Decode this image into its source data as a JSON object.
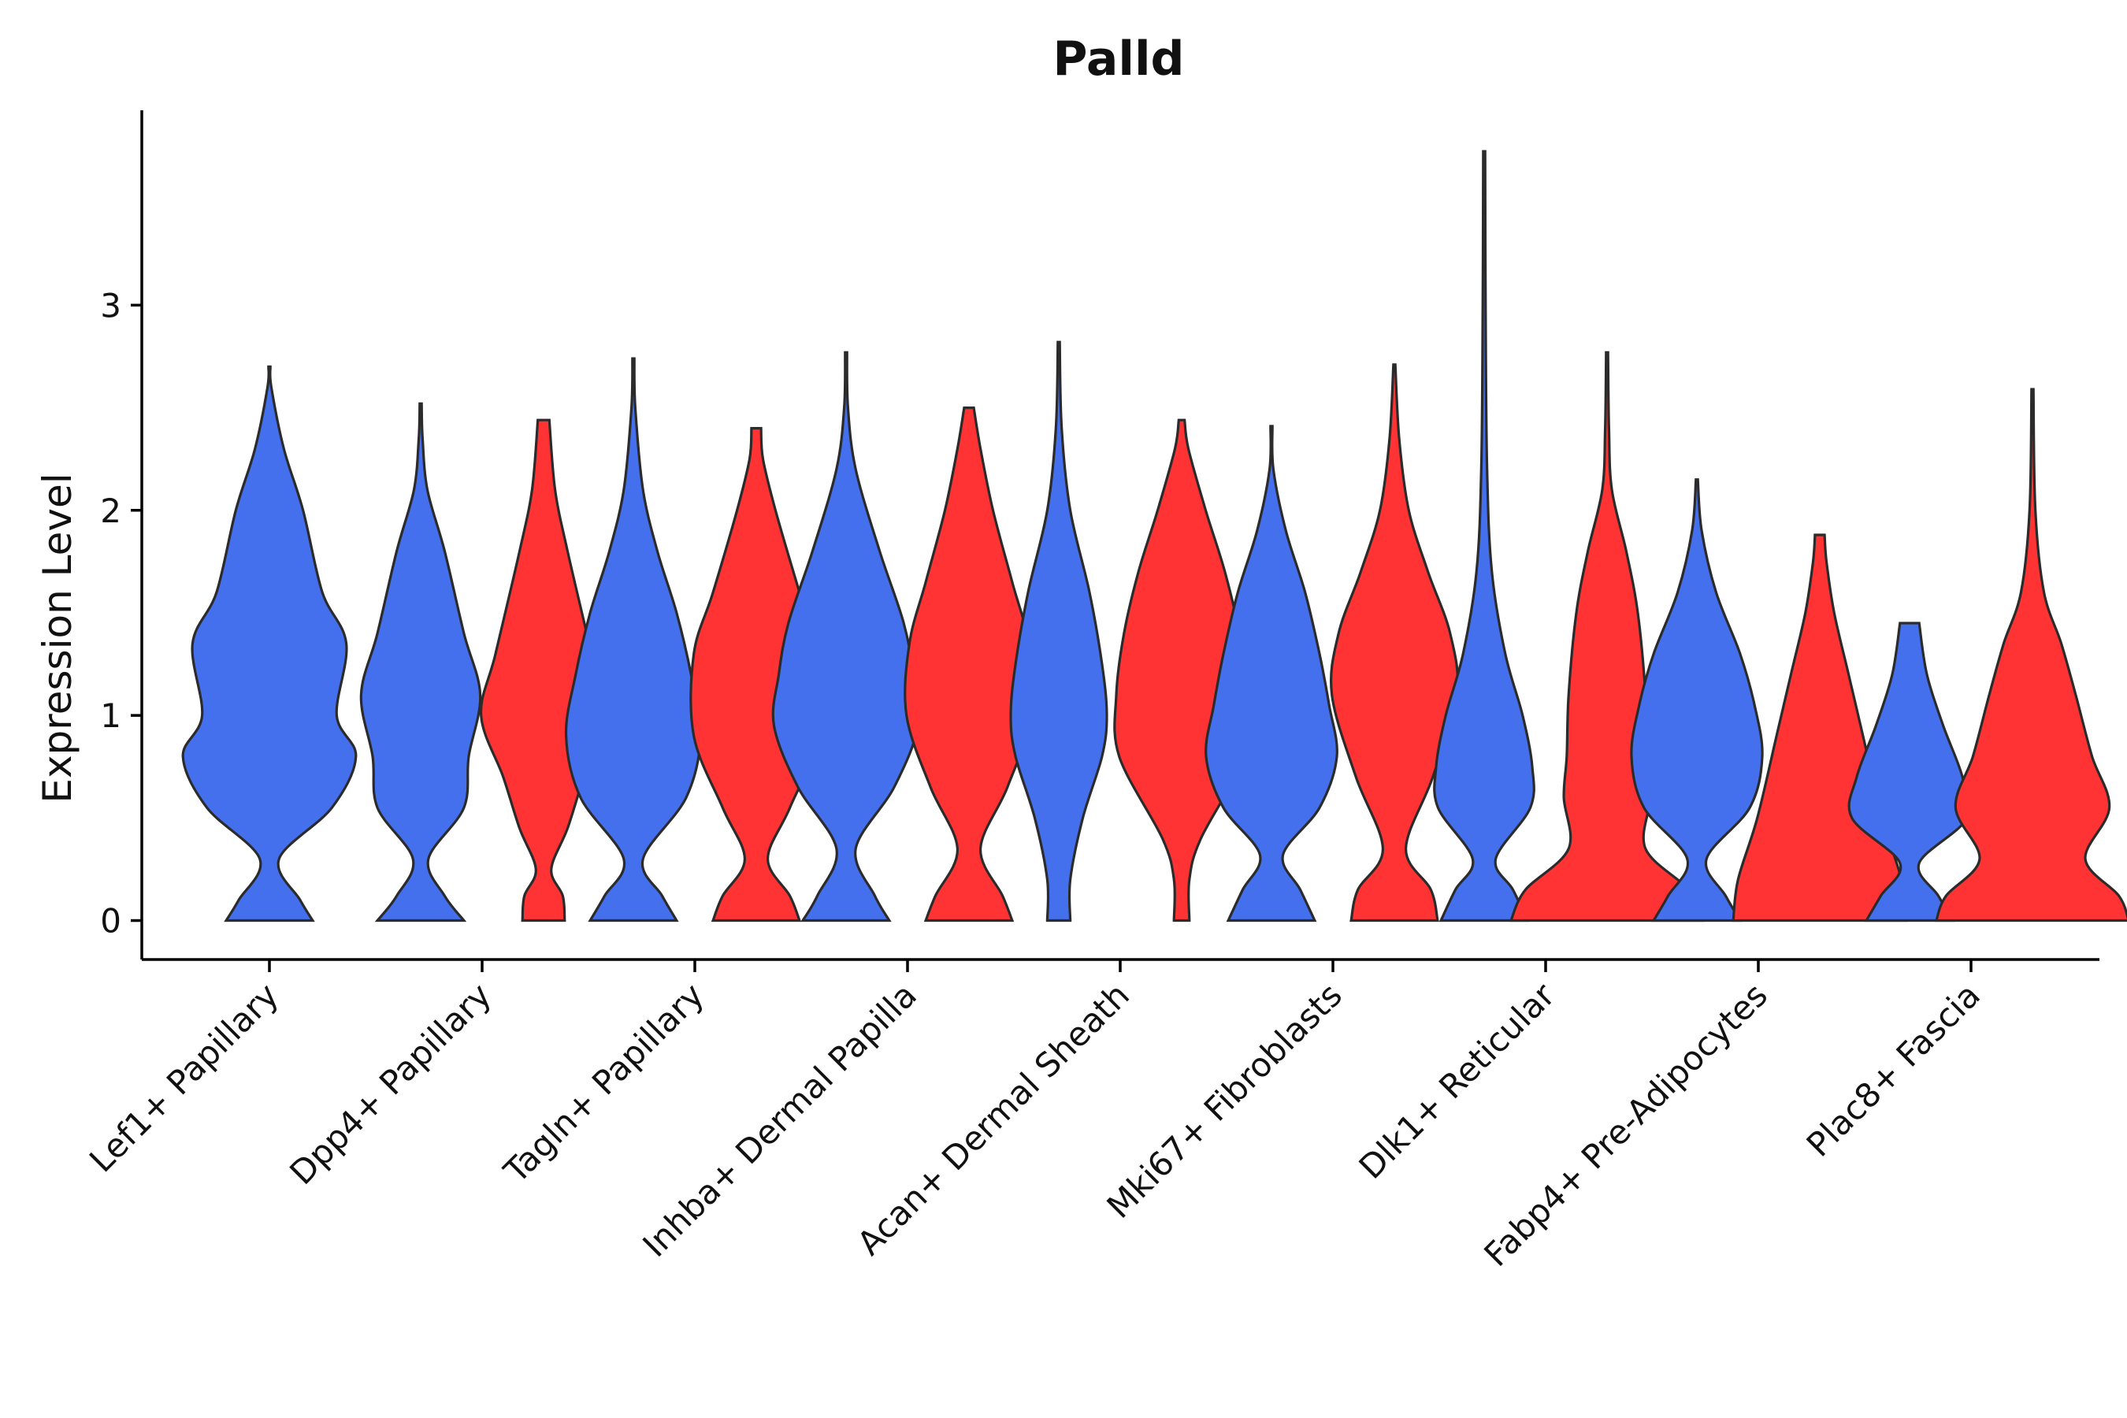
{
  "chart_data": {
    "type": "violin",
    "title": "Palld",
    "xlabel": "",
    "ylabel": "Expression Level",
    "ylim": [
      -0.19,
      3.95
    ],
    "yticks": [
      0,
      1,
      2,
      3
    ],
    "colors": {
      "blue": "#4470EE",
      "red": "#FF3333"
    },
    "categories": [
      "Lef1+ Papillary",
      "Dpp4+ Papillary",
      "Tagln+ Papillary",
      "Inhba+ Dermal Papilla",
      "Acan+ Dermal Sheath",
      "Mki67+ Fibroblasts",
      "Dlk1+ Reticular",
      "Fabp4+ Pre-Adipocytes",
      "Plac8+ Fascia"
    ],
    "series": [
      {
        "name": "blue",
        "color": "#4470EE",
        "violins": [
          {
            "category": "Lef1+ Papillary",
            "max": 2.7,
            "profile": [
              [
                0,
                0.45
              ],
              [
                0.1,
                0.32
              ],
              [
                0.3,
                0.1
              ],
              [
                0.55,
                0.65
              ],
              [
                0.8,
                0.9
              ],
              [
                1.0,
                0.7
              ],
              [
                1.35,
                0.8
              ],
              [
                1.6,
                0.55
              ],
              [
                2.0,
                0.35
              ],
              [
                2.3,
                0.15
              ],
              [
                2.6,
                0.02
              ],
              [
                2.7,
                0.01
              ]
            ]
          },
          {
            "category": "Dpp4+ Papillary",
            "max": 2.52,
            "profile": [
              [
                0,
                0.45
              ],
              [
                0.12,
                0.25
              ],
              [
                0.3,
                0.08
              ],
              [
                0.55,
                0.45
              ],
              [
                0.8,
                0.5
              ],
              [
                1.1,
                0.62
              ],
              [
                1.4,
                0.45
              ],
              [
                1.8,
                0.25
              ],
              [
                2.1,
                0.07
              ],
              [
                2.35,
                0.02
              ],
              [
                2.52,
                0.01
              ]
            ]
          },
          {
            "category": "Tagln+ Papillary",
            "max": 2.74,
            "profile": [
              [
                0,
                0.45
              ],
              [
                0.12,
                0.3
              ],
              [
                0.3,
                0.1
              ],
              [
                0.6,
                0.55
              ],
              [
                0.9,
                0.7
              ],
              [
                1.2,
                0.6
              ],
              [
                1.5,
                0.45
              ],
              [
                1.8,
                0.25
              ],
              [
                2.1,
                0.1
              ],
              [
                2.5,
                0.02
              ],
              [
                2.74,
                0.01
              ]
            ]
          },
          {
            "category": "Inhba+ Dermal Papilla",
            "max": 2.77,
            "profile": [
              [
                0,
                0.45
              ],
              [
                0.12,
                0.3
              ],
              [
                0.35,
                0.1
              ],
              [
                0.65,
                0.5
              ],
              [
                0.95,
                0.75
              ],
              [
                1.2,
                0.7
              ],
              [
                1.45,
                0.6
              ],
              [
                1.8,
                0.35
              ],
              [
                2.2,
                0.1
              ],
              [
                2.5,
                0.02
              ],
              [
                2.77,
                0.01
              ]
            ]
          },
          {
            "category": "Acan+ Dermal Sheath",
            "max": 2.82,
            "profile": [
              [
                0,
                0.12
              ],
              [
                0.2,
                0.12
              ],
              [
                0.5,
                0.25
              ],
              [
                0.8,
                0.45
              ],
              [
                1.0,
                0.5
              ],
              [
                1.25,
                0.45
              ],
              [
                1.6,
                0.32
              ],
              [
                2.0,
                0.12
              ],
              [
                2.4,
                0.03
              ],
              [
                2.82,
                0.01
              ]
            ]
          },
          {
            "category": "Mki67+ Fibroblasts",
            "max": 2.41,
            "profile": [
              [
                0,
                0.45
              ],
              [
                0.15,
                0.3
              ],
              [
                0.32,
                0.12
              ],
              [
                0.55,
                0.5
              ],
              [
                0.8,
                0.68
              ],
              [
                1.05,
                0.6
              ],
              [
                1.3,
                0.5
              ],
              [
                1.6,
                0.35
              ],
              [
                1.9,
                0.15
              ],
              [
                2.2,
                0.02
              ],
              [
                2.41,
                0.01
              ]
            ]
          },
          {
            "category": "Dlk1+ Reticular",
            "max": 3.75,
            "profile": [
              [
                0,
                0.45
              ],
              [
                0.15,
                0.3
              ],
              [
                0.3,
                0.12
              ],
              [
                0.55,
                0.48
              ],
              [
                0.75,
                0.5
              ],
              [
                1.0,
                0.4
              ],
              [
                1.3,
                0.22
              ],
              [
                1.7,
                0.08
              ],
              [
                2.2,
                0.03
              ],
              [
                3.0,
                0.015
              ],
              [
                3.75,
                0.01
              ]
            ]
          },
          {
            "category": "Fabp4+ Pre-Adipocytes",
            "max": 2.15,
            "profile": [
              [
                0,
                0.45
              ],
              [
                0.12,
                0.3
              ],
              [
                0.3,
                0.1
              ],
              [
                0.55,
                0.55
              ],
              [
                0.8,
                0.68
              ],
              [
                1.05,
                0.6
              ],
              [
                1.3,
                0.45
              ],
              [
                1.6,
                0.2
              ],
              [
                1.9,
                0.05
              ],
              [
                2.15,
                0.01
              ]
            ]
          },
          {
            "category": "Plac8+ Fascia",
            "max": 1.45,
            "profile": [
              [
                0,
                0.45
              ],
              [
                0.12,
                0.3
              ],
              [
                0.28,
                0.1
              ],
              [
                0.5,
                0.6
              ],
              [
                0.7,
                0.55
              ],
              [
                0.95,
                0.35
              ],
              [
                1.2,
                0.18
              ],
              [
                1.45,
                0.1
              ]
            ]
          }
        ]
      },
      {
        "name": "red",
        "color": "#FF3333",
        "violins": [
          {
            "category": "Dpp4+ Papillary",
            "max": 2.44,
            "profile": [
              [
                0,
                0.22
              ],
              [
                0.12,
                0.2
              ],
              [
                0.25,
                0.08
              ],
              [
                0.45,
                0.25
              ],
              [
                0.7,
                0.42
              ],
              [
                1.0,
                0.65
              ],
              [
                1.3,
                0.5
              ],
              [
                1.8,
                0.25
              ],
              [
                2.1,
                0.12
              ],
              [
                2.44,
                0.06
              ]
            ]
          },
          {
            "category": "Tagln+ Papillary",
            "max": 2.4,
            "profile": [
              [
                0,
                0.45
              ],
              [
                0.12,
                0.35
              ],
              [
                0.3,
                0.12
              ],
              [
                0.55,
                0.35
              ],
              [
                0.9,
                0.65
              ],
              [
                1.3,
                0.65
              ],
              [
                1.6,
                0.45
              ],
              [
                2.0,
                0.2
              ],
              [
                2.25,
                0.07
              ],
              [
                2.4,
                0.05
              ]
            ]
          },
          {
            "category": "Inhba+ Dermal Papilla",
            "max": 2.5,
            "profile": [
              [
                0,
                0.45
              ],
              [
                0.12,
                0.35
              ],
              [
                0.35,
                0.12
              ],
              [
                0.65,
                0.4
              ],
              [
                1.0,
                0.65
              ],
              [
                1.35,
                0.62
              ],
              [
                1.65,
                0.45
              ],
              [
                2.0,
                0.25
              ],
              [
                2.3,
                0.12
              ],
              [
                2.5,
                0.05
              ]
            ]
          },
          {
            "category": "Acan+ Dermal Sheath",
            "max": 2.44,
            "profile": [
              [
                0,
                0.08
              ],
              [
                0.2,
                0.08
              ],
              [
                0.4,
                0.2
              ],
              [
                0.8,
                0.65
              ],
              [
                1.1,
                0.68
              ],
              [
                1.4,
                0.6
              ],
              [
                1.7,
                0.45
              ],
              [
                2.0,
                0.25
              ],
              [
                2.3,
                0.07
              ],
              [
                2.44,
                0.03
              ]
            ]
          },
          {
            "category": "Mki67+ Fibroblasts",
            "max": 2.71,
            "profile": [
              [
                0,
                0.45
              ],
              [
                0.15,
                0.38
              ],
              [
                0.35,
                0.12
              ],
              [
                0.7,
                0.4
              ],
              [
                1.1,
                0.65
              ],
              [
                1.4,
                0.58
              ],
              [
                1.7,
                0.35
              ],
              [
                2.0,
                0.15
              ],
              [
                2.35,
                0.05
              ],
              [
                2.71,
                0.01
              ]
            ]
          },
          {
            "category": "Dlk1+ Reticular",
            "max": 2.77,
            "profile": [
              [
                0,
                1.0
              ],
              [
                0.15,
                0.85
              ],
              [
                0.35,
                0.4
              ],
              [
                0.6,
                0.45
              ],
              [
                0.8,
                0.42
              ],
              [
                1.1,
                0.4
              ],
              [
                1.5,
                0.32
              ],
              [
                1.8,
                0.2
              ],
              [
                2.1,
                0.05
              ],
              [
                2.4,
                0.02
              ],
              [
                2.77,
                0.01
              ]
            ]
          },
          {
            "category": "Fabp4+ Pre-Adipocytes",
            "max": 1.88,
            "profile": [
              [
                0,
                0.9
              ],
              [
                0.2,
                0.85
              ],
              [
                0.5,
                0.65
              ],
              [
                0.9,
                0.45
              ],
              [
                1.2,
                0.3
              ],
              [
                1.5,
                0.15
              ],
              [
                1.75,
                0.07
              ],
              [
                1.88,
                0.05
              ]
            ]
          },
          {
            "category": "Plac8+ Fascia",
            "max": 2.59,
            "profile": [
              [
                0,
                1.0
              ],
              [
                0.12,
                0.9
              ],
              [
                0.3,
                0.55
              ],
              [
                0.55,
                0.8
              ],
              [
                0.8,
                0.62
              ],
              [
                1.1,
                0.45
              ],
              [
                1.35,
                0.3
              ],
              [
                1.6,
                0.12
              ],
              [
                2.0,
                0.03
              ],
              [
                2.59,
                0.01
              ]
            ]
          }
        ]
      }
    ]
  }
}
